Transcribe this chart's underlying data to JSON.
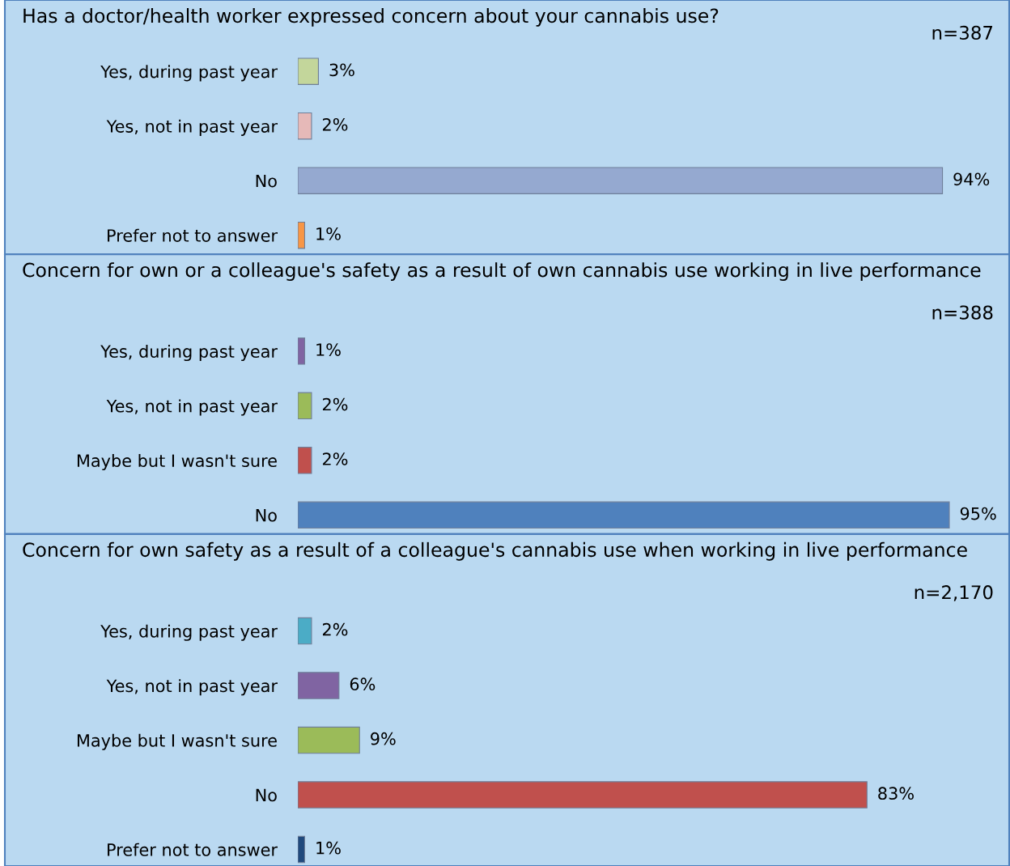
{
  "chart_data": [
    {
      "type": "bar",
      "orientation": "horizontal",
      "title": "Has a doctor/health worker expressed concern about your cannabis use?",
      "annotations": [
        "n=387"
      ],
      "categories": [
        "Yes, during past year",
        "Yes, not in past year",
        "No",
        "Prefer not to answer"
      ],
      "values": [
        3,
        2,
        94,
        1
      ],
      "colors": [
        "#c3d69b",
        "#e6b9b8",
        "#95a9d0",
        "#f79646"
      ],
      "value_labels": [
        "3%",
        "2%",
        "94%",
        "1%"
      ]
    },
    {
      "type": "bar",
      "orientation": "horizontal",
      "title": "Concern for own or a colleague's safety as a result of own cannabis use working in live performance",
      "annotations": [
        "n=388"
      ],
      "categories": [
        "Yes, during past year",
        "Yes, not in past year",
        "Maybe but I wasn't sure",
        "No"
      ],
      "values": [
        1,
        2,
        2,
        95
      ],
      "colors": [
        "#8064a2",
        "#9bbb59",
        "#c0504d",
        "#4f81bd"
      ],
      "value_labels": [
        "1%",
        "2%",
        "2%",
        "95%"
      ]
    },
    {
      "type": "bar",
      "orientation": "horizontal",
      "title": "Concern for own safety as a result of a colleague's cannabis use when working in live performance",
      "annotations": [
        "n=2,170"
      ],
      "categories": [
        "Yes, during past year",
        "Yes, not in past year",
        "Maybe but I wasn't sure",
        "No",
        "Prefer not to answer"
      ],
      "values": [
        2,
        6,
        9,
        83,
        1
      ],
      "colors": [
        "#4bacc6",
        "#8064a2",
        "#9bbb59",
        "#c0504d",
        "#1f497d"
      ],
      "value_labels": [
        "2%",
        "6%",
        "9%",
        "83%",
        "1%"
      ]
    }
  ]
}
